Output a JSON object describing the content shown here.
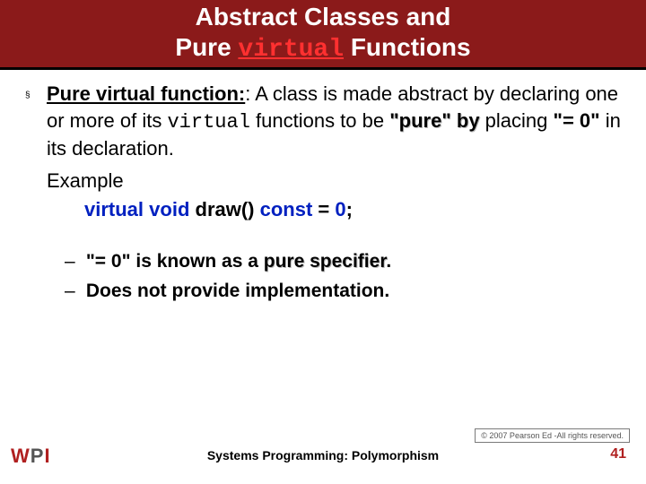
{
  "title": {
    "line1": "Abstract Classes and",
    "line2_pre": "Pure ",
    "line2_kw": "virtual",
    "line2_post": " Functions"
  },
  "bullet": {
    "term": "Pure virtual function:",
    "sep": ": ",
    "part1": "A class is made abstract by declaring one or more of its ",
    "kw_virtual": "virtual",
    "part2": " functions to be ",
    "quote_pure": "\"pure\" by",
    "part3": " placing ",
    "quote_eq0": "\"= 0\"",
    "part4": " in its declaration."
  },
  "example": {
    "label": "Example",
    "kw1": "virtual",
    "kw2": "void",
    "fn": " draw() ",
    "kw3": "const",
    "eq": " = ",
    "zero": "0",
    "semi": ";"
  },
  "sub": {
    "item1_pre": "\"= 0\" is known as a ",
    "item1_term": "pure specifier",
    "item1_post": ".",
    "item2": "Does not provide implementation."
  },
  "footer": {
    "center": "Systems Programming:  Polymorphism",
    "page": "41",
    "copyright": "© 2007 Pearson Ed -All rights reserved."
  },
  "colors": {
    "title_bg": "#8b1a1a",
    "keyword_red": "#ff3030",
    "blue": "#0020c0",
    "page_red": "#b02020"
  }
}
